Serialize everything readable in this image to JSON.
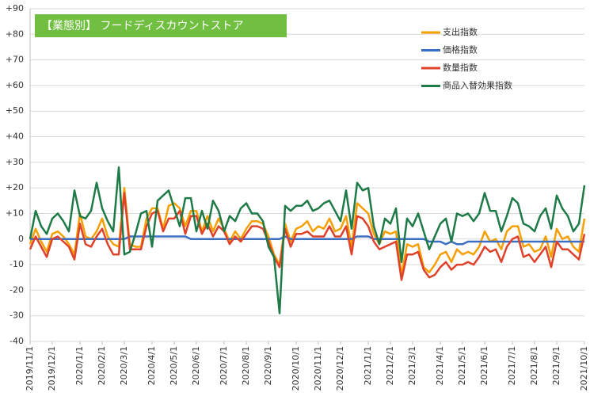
{
  "chart_data": {
    "type": "line",
    "title": "【業態別】 フードディスカウントストア",
    "categories": [
      "2019/11/1",
      null,
      null,
      null,
      "2019/12/1",
      null,
      null,
      null,
      null,
      "2020/1/1",
      null,
      null,
      null,
      "2020/2/1",
      null,
      null,
      null,
      "2020/3/1",
      null,
      null,
      null,
      null,
      "2020/4/1",
      null,
      null,
      null,
      "2020/5/1",
      null,
      null,
      null,
      "2020/6/1",
      null,
      null,
      null,
      null,
      "2020/7/1",
      null,
      null,
      null,
      "2020/8/1",
      null,
      null,
      null,
      "2020/9/1",
      null,
      null,
      null,
      null,
      "2020/10/1",
      null,
      null,
      null,
      "2020/11/1",
      null,
      null,
      null,
      "2020/12/1",
      null,
      null,
      null,
      null,
      "2021/1/1",
      null,
      null,
      null,
      "2021/2/1",
      null,
      null,
      null,
      "2021/3/1",
      null,
      null,
      null,
      null,
      "2021/4/1",
      null,
      null,
      null,
      "2021/5/1",
      null,
      null,
      null,
      "2021/6/1",
      null,
      null,
      null,
      null,
      "2021/7/1",
      null,
      null,
      null,
      "2021/8/1",
      null,
      null,
      null,
      "2021/9/1",
      null,
      null,
      null,
      null,
      "2021/10/1"
    ],
    "series": [
      {
        "name": "支出指数",
        "color": "#f5a000",
        "values": [
          -2,
          4,
          -1,
          -5,
          2,
          3,
          1,
          -2,
          -6,
          10,
          1,
          0,
          3,
          8,
          1,
          -2,
          -3,
          20,
          -2,
          -3,
          -3,
          8,
          12,
          12,
          4,
          13,
          14,
          12,
          5,
          11,
          11,
          3,
          9,
          3,
          8,
          4,
          -1,
          3,
          0,
          4,
          7,
          7,
          6,
          1,
          -6,
          -10,
          6,
          -1,
          4,
          5,
          7,
          3,
          5,
          4,
          8,
          3,
          4,
          9,
          -3,
          14,
          12,
          10,
          2,
          -2,
          3,
          2,
          3,
          -14,
          -2,
          -3,
          -2,
          -11,
          -13,
          -10,
          -6,
          -5,
          -9,
          -4,
          -6,
          -5,
          -6,
          -3,
          3,
          -1,
          0,
          -4,
          3,
          5,
          5,
          -3,
          -2,
          -5,
          -4,
          1,
          -7,
          4,
          0,
          1,
          -3,
          -5,
          8
        ]
      },
      {
        "name": "価格指数",
        "color": "#3a6fc4",
        "values": [
          0,
          0,
          0,
          0,
          0,
          0,
          0,
          0,
          0,
          0,
          0,
          0,
          0,
          0,
          0,
          0,
          0,
          0,
          1,
          1,
          1,
          1,
          1,
          1,
          1,
          1,
          1,
          1,
          1,
          0,
          0,
          0,
          0,
          0,
          0,
          0,
          0,
          0,
          0,
          0,
          0,
          0,
          0,
          0,
          0,
          0,
          1,
          0,
          0,
          0,
          0,
          0,
          0,
          0,
          0,
          0,
          0,
          0,
          0,
          1,
          1,
          1,
          0,
          0,
          0,
          0,
          0,
          0,
          0,
          0,
          0,
          0,
          -1,
          -1,
          -1,
          -2,
          -1,
          -2,
          -2,
          -1,
          -1,
          -1,
          -1,
          -1,
          -1,
          -1,
          -1,
          -1,
          -1,
          -1,
          -1,
          -1,
          -1,
          -1,
          -1,
          -1,
          -1,
          -1,
          -1,
          -1,
          -1
        ]
      },
      {
        "name": "数量指数",
        "color": "#e0412b",
        "values": [
          -4,
          1,
          -3,
          -7,
          0,
          1,
          -1,
          -3,
          -8,
          6,
          -2,
          -3,
          1,
          4,
          -2,
          -6,
          -6,
          18,
          -4,
          -4,
          -4,
          5,
          10,
          11,
          3,
          8,
          8,
          11,
          2,
          9,
          9,
          2,
          6,
          1,
          5,
          3,
          -2,
          1,
          -1,
          2,
          5,
          5,
          4,
          -1,
          -7,
          -11,
          4,
          -3,
          2,
          2,
          3,
          1,
          1,
          1,
          5,
          1,
          1,
          5,
          -6,
          9,
          8,
          5,
          -1,
          -4,
          -3,
          -2,
          -1,
          -16,
          -6,
          -6,
          -5,
          -12,
          -15,
          -14,
          -11,
          -9,
          -12,
          -10,
          -10,
          -9,
          -10,
          -7,
          -3,
          -5,
          -4,
          -9,
          -3,
          0,
          1,
          -7,
          -6,
          -9,
          -6,
          -3,
          -11,
          -1,
          -4,
          -4,
          -6,
          -8,
          2
        ]
      },
      {
        "name": "商品入替効果指数",
        "color": "#1e7a46",
        "values": [
          0,
          11,
          5,
          2,
          8,
          10,
          7,
          3,
          19,
          9,
          8,
          11,
          22,
          12,
          7,
          3,
          28,
          -6,
          -5,
          2,
          10,
          11,
          -3,
          15,
          17,
          19,
          12,
          5,
          16,
          16,
          3,
          11,
          4,
          15,
          11,
          3,
          9,
          7,
          12,
          14,
          10,
          10,
          7,
          -3,
          -7,
          -29,
          13,
          11,
          13,
          13,
          15,
          11,
          12,
          14,
          15,
          11,
          7,
          19,
          4,
          22,
          19,
          20,
          5,
          -2,
          8,
          6,
          12,
          -9,
          8,
          5,
          10,
          3,
          -4,
          1,
          6,
          8,
          -1,
          10,
          9,
          10,
          7,
          10,
          18,
          11,
          11,
          3,
          9,
          16,
          14,
          6,
          5,
          3,
          9,
          12,
          4,
          17,
          12,
          9,
          3,
          6,
          21
        ]
      }
    ],
    "ylim": [
      -40,
      90
    ],
    "yticks": [
      -40,
      -30,
      -20,
      -10,
      0,
      {
        "value": 10,
        "label": "+10"
      },
      {
        "value": 20,
        "label": "+20"
      },
      {
        "value": 30,
        "label": "+30"
      },
      {
        "value": 40,
        "label": "+40"
      },
      {
        "value": 50,
        "label": "+50"
      },
      {
        "value": 60,
        "label": "+60"
      },
      {
        "value": 70,
        "label": "+70"
      },
      {
        "value": 80,
        "label": "+80"
      },
      {
        "value": 90,
        "label": "+90"
      }
    ],
    "grid": true,
    "legend": "upper right"
  }
}
